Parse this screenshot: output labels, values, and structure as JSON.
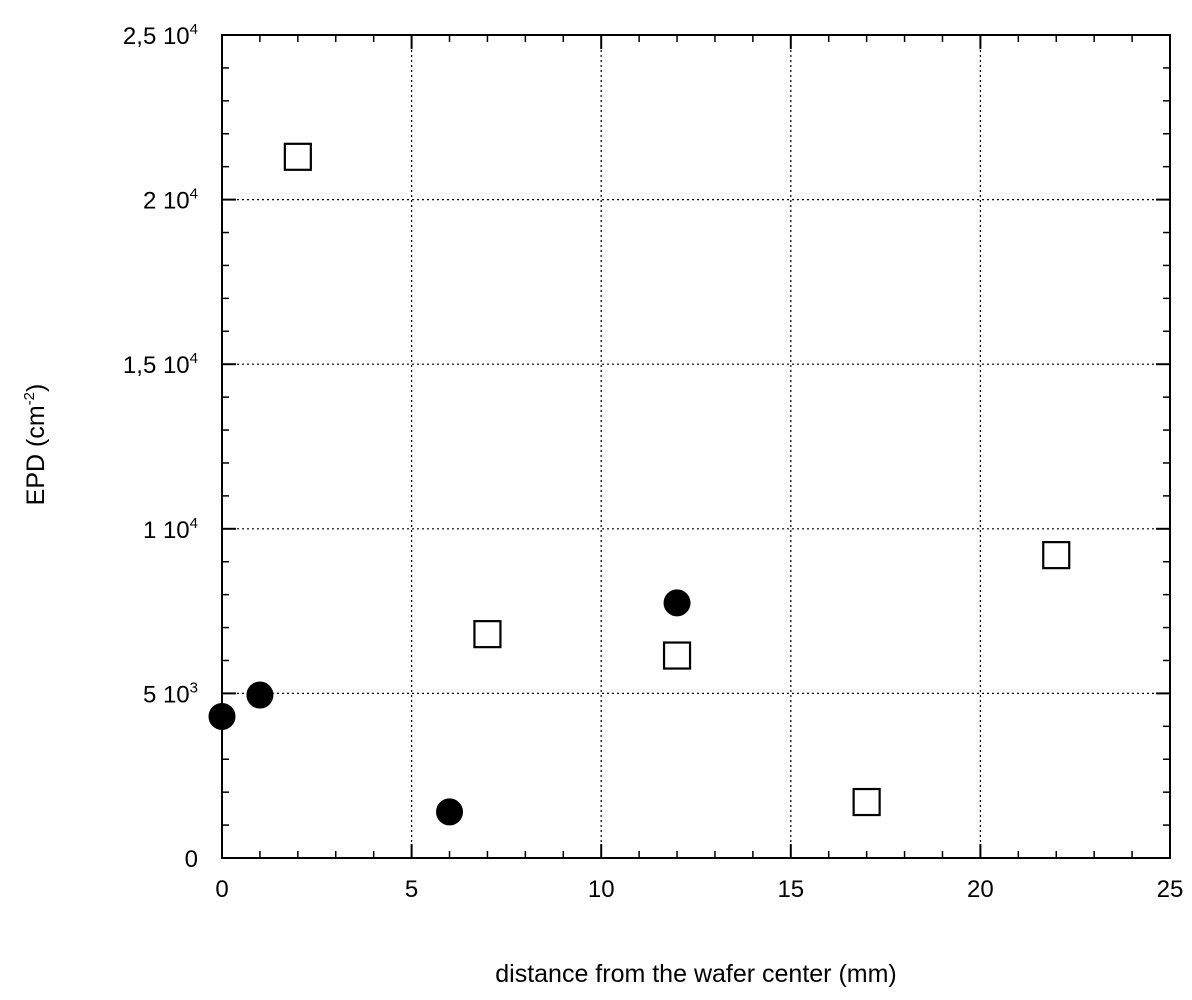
{
  "chart_data": {
    "type": "scatter",
    "xlabel": "distance from the wafer center (mm)",
    "ylabel": {
      "text": "EPD (cm",
      "sup": "-2",
      "close": ")"
    },
    "xlim": [
      0,
      25
    ],
    "ylim": [
      0,
      25000
    ],
    "grid": true,
    "x_ticks": [
      {
        "value": 0,
        "label": "0"
      },
      {
        "value": 5,
        "label": "5"
      },
      {
        "value": 10,
        "label": "10"
      },
      {
        "value": 15,
        "label": "15"
      },
      {
        "value": 20,
        "label": "20"
      },
      {
        "value": 25,
        "label": "25"
      }
    ],
    "y_ticks": [
      {
        "value": 0,
        "mantissa": "0",
        "exp": ""
      },
      {
        "value": 5000,
        "mantissa": "5 10",
        "exp": "3"
      },
      {
        "value": 10000,
        "mantissa": "1 10",
        "exp": "4"
      },
      {
        "value": 15000,
        "mantissa": "1,5 10",
        "exp": "4"
      },
      {
        "value": 20000,
        "mantissa": "2 10",
        "exp": "4"
      },
      {
        "value": 25000,
        "mantissa": "2,5 10",
        "exp": "4"
      }
    ],
    "series": [
      {
        "marker": "filled-circle",
        "color": "#000000",
        "points": [
          {
            "x": 0,
            "y": 4300
          },
          {
            "x": 1,
            "y": 4950
          },
          {
            "x": 6,
            "y": 1400
          },
          {
            "x": 12,
            "y": 7750
          }
        ]
      },
      {
        "marker": "open-square",
        "color": "#000000",
        "points": [
          {
            "x": 2,
            "y": 21300
          },
          {
            "x": 7,
            "y": 6800
          },
          {
            "x": 12,
            "y": 6150
          },
          {
            "x": 17,
            "y": 1700
          },
          {
            "x": 22,
            "y": 9200
          }
        ]
      }
    ]
  }
}
